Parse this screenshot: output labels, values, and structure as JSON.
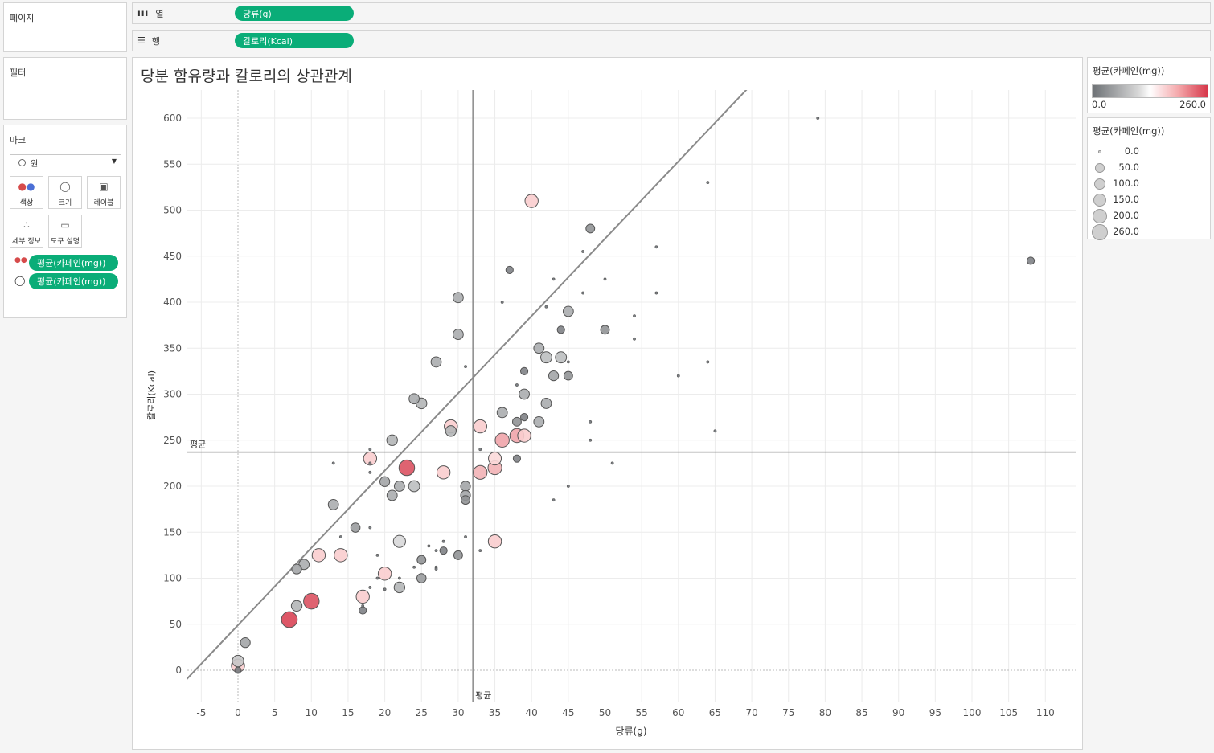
{
  "sidebar": {
    "pages_title": "페이지",
    "filters_title": "필터",
    "marks_title": "마크",
    "mark_type": "원",
    "buttons": {
      "color": "색상",
      "size": "크기",
      "label": "레이블",
      "detail": "세부 정보",
      "tooltip": "도구 설명"
    },
    "mark_fields": [
      "평균(카페인(mg))",
      "평균(카페인(mg))"
    ]
  },
  "shelves": {
    "columns_label": "열",
    "columns_pill": "당류(g)",
    "rows_label": "행",
    "rows_pill": "칼로리(Kcal)"
  },
  "colors": {
    "pill": "#0aad78",
    "gray_low": "#6d7175",
    "white_mid": "#ffffff",
    "red_high": "#d6374a",
    "reference_line": "#8a8a8a"
  },
  "legend_color": {
    "title": "평균(카페인(mg))",
    "min": "0.0",
    "max": "260.0"
  },
  "legend_size": {
    "title": "평균(카페인(mg))",
    "items": [
      "0.0",
      "50.0",
      "100.0",
      "150.0",
      "200.0",
      "260.0"
    ],
    "values": [
      0,
      50,
      100,
      150,
      200,
      260
    ]
  },
  "chart_data": {
    "type": "scatter",
    "title": "당분 함유량과 칼로리의 상관관계",
    "xlabel": "당류(g)",
    "ylabel": "칼로리(Kcal)",
    "xlim": [
      -7,
      114
    ],
    "ylim": [
      -33,
      630
    ],
    "xticks": [
      "-5",
      "0",
      "5",
      "10",
      "15",
      "20",
      "25",
      "30",
      "35",
      "40",
      "45",
      "50",
      "55",
      "60",
      "65",
      "70",
      "75",
      "80",
      "85",
      "90",
      "95",
      "100",
      "105",
      "110"
    ],
    "yticks": [
      "0",
      "50",
      "100",
      "150",
      "200",
      "250",
      "300",
      "350",
      "400",
      "450",
      "500",
      "550",
      "600"
    ],
    "grid": true,
    "reference_lines": {
      "x_mean": {
        "label": "평균",
        "value": 32
      },
      "y_mean": {
        "label": "평균",
        "value": 237
      }
    },
    "trend_line": {
      "intercept": 49,
      "slope": 8.4
    },
    "size_encoding": "평균(카페인(mg))",
    "color_encoding": "평균(카페인(mg))",
    "points": [
      {
        "x": 0,
        "y": 0,
        "c": 10
      },
      {
        "x": 0,
        "y": 5,
        "c": 150
      },
      {
        "x": 0,
        "y": 10,
        "c": 100
      },
      {
        "x": 1,
        "y": 30,
        "c": 60
      },
      {
        "x": 7,
        "y": 55,
        "c": 250
      },
      {
        "x": 10,
        "y": 75,
        "c": 240
      },
      {
        "x": 8,
        "y": 70,
        "c": 80
      },
      {
        "x": 8,
        "y": 110,
        "c": 60
      },
      {
        "x": 9,
        "y": 115,
        "c": 70
      },
      {
        "x": 11,
        "y": 125,
        "c": 150
      },
      {
        "x": 14,
        "y": 125,
        "c": 150
      },
      {
        "x": 13,
        "y": 180,
        "c": 70
      },
      {
        "x": 13,
        "y": 225,
        "c": 0
      },
      {
        "x": 14,
        "y": 145,
        "c": 0
      },
      {
        "x": 16,
        "y": 155,
        "c": 50
      },
      {
        "x": 17,
        "y": 65,
        "c": 20
      },
      {
        "x": 17,
        "y": 70,
        "c": 0
      },
      {
        "x": 17,
        "y": 80,
        "c": 150
      },
      {
        "x": 18,
        "y": 240,
        "c": 0
      },
      {
        "x": 18,
        "y": 230,
        "c": 150
      },
      {
        "x": 18,
        "y": 215,
        "c": 0
      },
      {
        "x": 18,
        "y": 225,
        "c": 0
      },
      {
        "x": 18,
        "y": 155,
        "c": 0
      },
      {
        "x": 18,
        "y": 90,
        "c": 0
      },
      {
        "x": 19,
        "y": 125,
        "c": 0
      },
      {
        "x": 19,
        "y": 100,
        "c": 0
      },
      {
        "x": 20,
        "y": 205,
        "c": 60
      },
      {
        "x": 20,
        "y": 105,
        "c": 150
      },
      {
        "x": 20,
        "y": 88,
        "c": 0
      },
      {
        "x": 21,
        "y": 250,
        "c": 80
      },
      {
        "x": 21,
        "y": 190,
        "c": 70
      },
      {
        "x": 22,
        "y": 200,
        "c": 70
      },
      {
        "x": 22,
        "y": 140,
        "c": 120
      },
      {
        "x": 22,
        "y": 100,
        "c": 0
      },
      {
        "x": 22,
        "y": 90,
        "c": 80
      },
      {
        "x": 23,
        "y": 220,
        "c": 240
      },
      {
        "x": 24,
        "y": 295,
        "c": 70
      },
      {
        "x": 24,
        "y": 200,
        "c": 90
      },
      {
        "x": 24,
        "y": 112,
        "c": 0
      },
      {
        "x": 25,
        "y": 290,
        "c": 80
      },
      {
        "x": 25,
        "y": 120,
        "c": 40
      },
      {
        "x": 25,
        "y": 100,
        "c": 50
      },
      {
        "x": 26,
        "y": 135,
        "c": 0
      },
      {
        "x": 27,
        "y": 335,
        "c": 70
      },
      {
        "x": 27,
        "y": 130,
        "c": 0
      },
      {
        "x": 27,
        "y": 112,
        "c": 0
      },
      {
        "x": 27,
        "y": 110,
        "c": 0
      },
      {
        "x": 28,
        "y": 215,
        "c": 150
      },
      {
        "x": 28,
        "y": 140,
        "c": 0
      },
      {
        "x": 28,
        "y": 130,
        "c": 20
      },
      {
        "x": 29,
        "y": 265,
        "c": 150
      },
      {
        "x": 29,
        "y": 260,
        "c": 80
      },
      {
        "x": 30,
        "y": 405,
        "c": 70
      },
      {
        "x": 30,
        "y": 365,
        "c": 70
      },
      {
        "x": 30,
        "y": 125,
        "c": 40
      },
      {
        "x": 31,
        "y": 330,
        "c": 0
      },
      {
        "x": 31,
        "y": 200,
        "c": 60
      },
      {
        "x": 31,
        "y": 190,
        "c": 60
      },
      {
        "x": 31,
        "y": 185,
        "c": 40
      },
      {
        "x": 31,
        "y": 145,
        "c": 0
      },
      {
        "x": 33,
        "y": 265,
        "c": 150
      },
      {
        "x": 33,
        "y": 240,
        "c": 0
      },
      {
        "x": 33,
        "y": 215,
        "c": 170
      },
      {
        "x": 33,
        "y": 130,
        "c": 0
      },
      {
        "x": 35,
        "y": 230,
        "c": 140
      },
      {
        "x": 35,
        "y": 220,
        "c": 170
      },
      {
        "x": 35,
        "y": 140,
        "c": 150
      },
      {
        "x": 36,
        "y": 400,
        "c": 0
      },
      {
        "x": 36,
        "y": 280,
        "c": 70
      },
      {
        "x": 36,
        "y": 250,
        "c": 180
      },
      {
        "x": 37,
        "y": 435,
        "c": 20
      },
      {
        "x": 38,
        "y": 310,
        "c": 0
      },
      {
        "x": 38,
        "y": 270,
        "c": 40
      },
      {
        "x": 38,
        "y": 255,
        "c": 180
      },
      {
        "x": 38,
        "y": 230,
        "c": 20
      },
      {
        "x": 39,
        "y": 325,
        "c": 20
      },
      {
        "x": 39,
        "y": 300,
        "c": 70
      },
      {
        "x": 39,
        "y": 275,
        "c": 20
      },
      {
        "x": 39,
        "y": 255,
        "c": 150
      },
      {
        "x": 40,
        "y": 510,
        "c": 150
      },
      {
        "x": 41,
        "y": 350,
        "c": 70
      },
      {
        "x": 41,
        "y": 270,
        "c": 70
      },
      {
        "x": 42,
        "y": 395,
        "c": 0
      },
      {
        "x": 42,
        "y": 340,
        "c": 90
      },
      {
        "x": 42,
        "y": 290,
        "c": 70
      },
      {
        "x": 43,
        "y": 425,
        "c": 0
      },
      {
        "x": 43,
        "y": 320,
        "c": 60
      },
      {
        "x": 43,
        "y": 185,
        "c": 0
      },
      {
        "x": 44,
        "y": 370,
        "c": 20
      },
      {
        "x": 44,
        "y": 340,
        "c": 90
      },
      {
        "x": 45,
        "y": 390,
        "c": 70
      },
      {
        "x": 45,
        "y": 335,
        "c": 0
      },
      {
        "x": 45,
        "y": 320,
        "c": 40
      },
      {
        "x": 45,
        "y": 200,
        "c": 0
      },
      {
        "x": 47,
        "y": 455,
        "c": 0
      },
      {
        "x": 47,
        "y": 410,
        "c": 0
      },
      {
        "x": 48,
        "y": 480,
        "c": 40
      },
      {
        "x": 48,
        "y": 270,
        "c": 0
      },
      {
        "x": 48,
        "y": 250,
        "c": 0
      },
      {
        "x": 50,
        "y": 425,
        "c": 0
      },
      {
        "x": 50,
        "y": 370,
        "c": 40
      },
      {
        "x": 51,
        "y": 225,
        "c": 0
      },
      {
        "x": 54,
        "y": 385,
        "c": 0
      },
      {
        "x": 54,
        "y": 360,
        "c": 0
      },
      {
        "x": 57,
        "y": 460,
        "c": 0
      },
      {
        "x": 57,
        "y": 410,
        "c": 0
      },
      {
        "x": 60,
        "y": 320,
        "c": 0
      },
      {
        "x": 64,
        "y": 530,
        "c": 0
      },
      {
        "x": 64,
        "y": 335,
        "c": 0
      },
      {
        "x": 65,
        "y": 260,
        "c": 0
      },
      {
        "x": 79,
        "y": 600,
        "c": 0
      },
      {
        "x": 108,
        "y": 445,
        "c": 20
      }
    ]
  }
}
